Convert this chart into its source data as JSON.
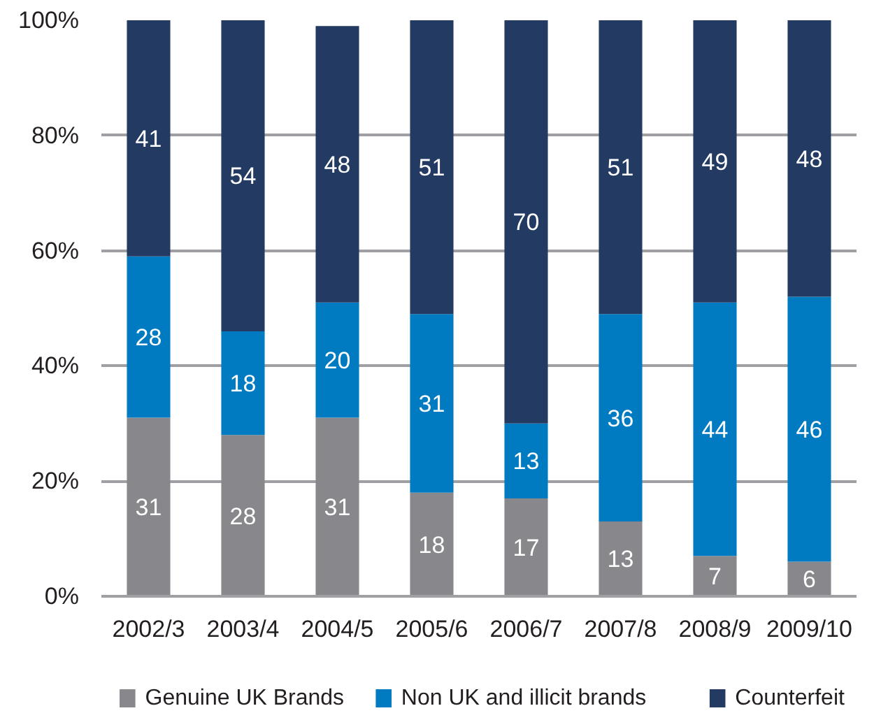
{
  "chart_data": {
    "type": "bar",
    "stacked": true,
    "categories": [
      "2002/3",
      "2003/4",
      "2004/5",
      "2005/6",
      "2006/7",
      "2007/8",
      "2008/9",
      "2009/10"
    ],
    "series": [
      {
        "name": "Genuine UK Brands",
        "color": "#87878c",
        "values": [
          31,
          28,
          31,
          18,
          17,
          13,
          7,
          6
        ]
      },
      {
        "name": "Non UK and illicit brands",
        "color": "#007bc2",
        "values": [
          28,
          18,
          20,
          31,
          13,
          36,
          44,
          46
        ]
      },
      {
        "name": "Counterfeit",
        "color": "#233a63",
        "values": [
          41,
          54,
          48,
          51,
          70,
          51,
          49,
          48
        ]
      }
    ],
    "ylim": [
      0,
      100
    ],
    "yticks": [
      {
        "value": 0,
        "label": "0%"
      },
      {
        "value": 20,
        "label": "20%"
      },
      {
        "value": 40,
        "label": "40%"
      },
      {
        "value": 60,
        "label": "60%"
      },
      {
        "value": 80,
        "label": "80%"
      },
      {
        "value": 100,
        "label": "100%"
      }
    ],
    "grid": "y",
    "legend": "bottom",
    "data_labels": true
  }
}
